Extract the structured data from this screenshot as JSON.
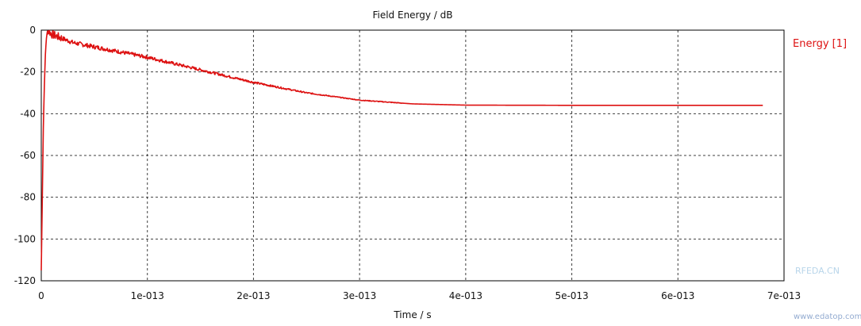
{
  "chart_data": {
    "type": "line",
    "title": "Field Energy / dB",
    "xlabel": "Time / s",
    "ylabel": "",
    "xlim": [
      0,
      7e-13
    ],
    "ylim": [
      -120,
      0
    ],
    "grid": true,
    "legend": "top-right",
    "x_ticks": [
      {
        "value": 0,
        "label": "0"
      },
      {
        "value": 1e-13,
        "label": "1e-013"
      },
      {
        "value": 2e-13,
        "label": "2e-013"
      },
      {
        "value": 3e-13,
        "label": "3e-013"
      },
      {
        "value": 4e-13,
        "label": "4e-013"
      },
      {
        "value": 5e-13,
        "label": "5e-013"
      },
      {
        "value": 6e-13,
        "label": "6e-013"
      },
      {
        "value": 7e-13,
        "label": "7e-013"
      }
    ],
    "y_ticks": [
      {
        "value": 0,
        "label": "0"
      },
      {
        "value": -20,
        "label": "-20"
      },
      {
        "value": -40,
        "label": "-40"
      },
      {
        "value": -60,
        "label": "-60"
      },
      {
        "value": -80,
        "label": "-80"
      },
      {
        "value": -100,
        "label": "-100"
      },
      {
        "value": -120,
        "label": "-120"
      }
    ],
    "series": [
      {
        "name": "Energy [1]",
        "color": "#dd1111",
        "x": [
          0,
          1e-15,
          2e-15,
          3e-15,
          4e-15,
          5e-15,
          6e-15,
          8e-15,
          1e-14,
          2e-14,
          3e-14,
          5e-14,
          7e-14,
          1e-13,
          1.5e-13,
          2e-13,
          2.5e-13,
          3e-13,
          3.5e-13,
          4e-13,
          5e-13,
          6e-13,
          6.8e-13
        ],
        "y": [
          -115,
          -80,
          -45,
          -25,
          -10,
          -3,
          0,
          -1,
          -2,
          -4,
          -6,
          -8,
          -10,
          -13,
          -19,
          -25,
          -30,
          -33.5,
          -35.3,
          -35.9,
          -36,
          -36,
          -36
        ]
      }
    ],
    "watermark": [
      "RFEDA.CN",
      "www.edatop.com"
    ]
  }
}
